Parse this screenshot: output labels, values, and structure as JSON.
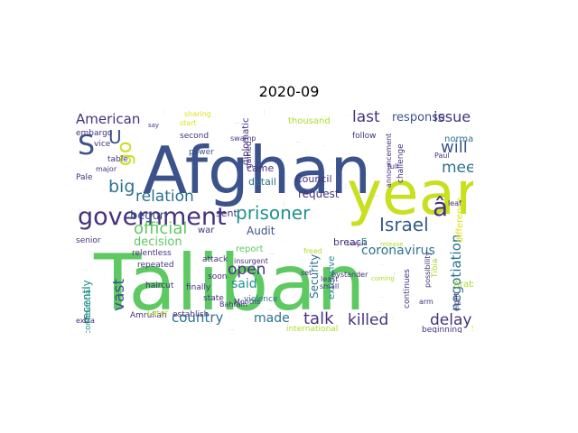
{
  "figure": {
    "title": "2020-09"
  },
  "palette": {
    "background": "#ffffff",
    "dark_purple": "#46327e",
    "indigo": "#3b528b",
    "blue": "#365c8d",
    "teal_dark": "#2c728e",
    "teal": "#21918c",
    "green_teal": "#1fa187",
    "green": "#3bbb75",
    "light_green": "#5ec962",
    "lime": "#addc30",
    "yellow": "#dde318"
  },
  "words": [
    {
      "text": "Taliban",
      "color": "#5ec962"
    },
    {
      "text": "Afghan",
      "color": "#3b528b"
    },
    {
      "text": "year",
      "color": "#c8e020"
    },
    {
      "text": "government",
      "color": "#46327e"
    },
    {
      "text": "Israel",
      "color": "#365c8d"
    },
    {
      "text": "prisoner",
      "color": "#21918c"
    },
    {
      "text": "relation",
      "color": "#2c728e"
    },
    {
      "text": "official",
      "color": "#5ec962"
    },
    {
      "text": "American",
      "color": "#46327e"
    },
    {
      "text": "S",
      "color": "#3b528b"
    },
    {
      "text": "U",
      "color": "#3b528b"
    },
    {
      "text": "big",
      "color": "#2c728e"
    },
    {
      "text": "go",
      "color": "#c8e020"
    },
    {
      "text": "last",
      "color": "#46327e"
    },
    {
      "text": "response",
      "color": "#3b528b"
    },
    {
      "text": "issue",
      "color": "#46327e"
    },
    {
      "text": "will",
      "color": "#3b528b"
    },
    {
      "text": "meet",
      "color": "#2c728e"
    },
    {
      "text": "â",
      "color": "#46327e"
    },
    {
      "text": "coronavirus",
      "color": "#2c728e"
    },
    {
      "text": "negotiation",
      "color": "#2c728e"
    },
    {
      "text": "delay",
      "color": "#46327e"
    },
    {
      "text": "killed",
      "color": "#46327e"
    },
    {
      "text": "talk",
      "color": "#46327e"
    },
    {
      "text": "made",
      "color": "#2c728e"
    },
    {
      "text": "country",
      "color": "#2c728e"
    },
    {
      "text": "open",
      "color": "#46327e"
    },
    {
      "text": "said",
      "color": "#21918c"
    },
    {
      "text": "vast",
      "color": "#3b528b"
    },
    {
      "text": "decision",
      "color": "#5ec962"
    },
    {
      "text": "begun",
      "color": "#3b528b"
    },
    {
      "text": "sent",
      "color": "#46327e"
    },
    {
      "text": "Audit",
      "color": "#3b528b"
    },
    {
      "text": "request",
      "color": "#46327e"
    },
    {
      "text": "Council",
      "color": "#46327e"
    },
    {
      "text": "came",
      "color": "#46327e"
    },
    {
      "text": "detail",
      "color": "#2c728e"
    },
    {
      "text": "recently",
      "color": "#21918c"
    },
    {
      "text": "confidential",
      "color": "#21918c"
    },
    {
      "text": "Security",
      "color": "#2c728e"
    },
    {
      "text": "extensive",
      "color": "#21918c"
    },
    {
      "text": "breach",
      "color": "#46327e"
    },
    {
      "text": "report",
      "color": "#5ec962"
    },
    {
      "text": "insurgent",
      "color": "#46327e"
    },
    {
      "text": "freed",
      "color": "#addc30"
    },
    {
      "text": "E",
      "color": "#1fa187"
    },
    {
      "text": "normalizing",
      "color": "#2c728e"
    },
    {
      "text": "Tibia",
      "color": "#addc30"
    },
    {
      "text": "Paul",
      "color": "#46327e"
    },
    {
      "text": "embargo",
      "color": "#46327e"
    },
    {
      "text": "vice",
      "color": "#46327e"
    },
    {
      "text": "table",
      "color": "#46327e"
    },
    {
      "text": "Pale",
      "color": "#46327e"
    },
    {
      "text": "major",
      "color": "#46327e"
    },
    {
      "text": "second",
      "color": "#46327e"
    },
    {
      "text": "power",
      "color": "#3b528b"
    },
    {
      "text": "sharing",
      "color": "#dde318"
    },
    {
      "text": "thousand",
      "color": "#addc30"
    },
    {
      "text": "challenge",
      "color": "#46327e"
    },
    {
      "text": "announcement",
      "color": "#46327e"
    },
    {
      "text": "diplomatic",
      "color": "#46327e"
    },
    {
      "text": "gained",
      "color": "#46327e"
    },
    {
      "text": "follow",
      "color": "#46327e"
    },
    {
      "text": "full",
      "color": "#46327e"
    },
    {
      "text": "Bahrain",
      "color": "#46327e"
    },
    {
      "text": "Months",
      "color": "#46327e"
    },
    {
      "text": "attack",
      "color": "#46327e"
    },
    {
      "text": "repeated",
      "color": "#46327e"
    },
    {
      "text": "relentless",
      "color": "#46327e"
    },
    {
      "text": "haircut",
      "color": "#46327e"
    },
    {
      "text": "finally",
      "color": "#46327e"
    },
    {
      "text": "state",
      "color": "#46327e"
    },
    {
      "text": "violence",
      "color": "#2c728e"
    },
    {
      "text": "soon",
      "color": "#46327e"
    },
    {
      "text": "war",
      "color": "#46327e"
    },
    {
      "text": "least",
      "color": "#46327e"
    },
    {
      "text": "set",
      "color": "#46327e"
    },
    {
      "text": "small",
      "color": "#46327e"
    },
    {
      "text": "bystander",
      "color": "#46327e"
    },
    {
      "text": "continues",
      "color": "#46327e"
    },
    {
      "text": "possibility",
      "color": "#46327e"
    },
    {
      "text": "difference",
      "color": "#dde318"
    },
    {
      "text": "eight",
      "color": "#46327e"
    },
    {
      "text": "Arab",
      "color": "#addc30"
    },
    {
      "text": "arm",
      "color": "#46327e"
    },
    {
      "text": "beginning",
      "color": "#46327e"
    },
    {
      "text": "international",
      "color": "#addc30"
    },
    {
      "text": "Saturday",
      "color": "#dde318"
    },
    {
      "text": "Amrullah",
      "color": "#46327e"
    },
    {
      "text": "establish",
      "color": "#46327e"
    },
    {
      "text": "Later",
      "color": "#addc30"
    },
    {
      "text": "senior",
      "color": "#46327e"
    },
    {
      "text": "extra",
      "color": "#46327e"
    },
    {
      "text": "leaf",
      "color": "#46327e"
    },
    {
      "text": "say",
      "color": "#46327e"
    },
    {
      "text": "coming",
      "color": "#addc30"
    },
    {
      "text": "League",
      "color": "#46327e"
    },
    {
      "text": "release",
      "color": "#addc30"
    },
    {
      "text": "swamp",
      "color": "#46327e"
    },
    {
      "text": "start",
      "color": "#dde318"
    }
  ]
}
